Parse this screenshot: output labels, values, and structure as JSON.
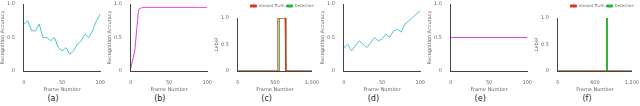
{
  "chart_data": [
    {
      "type": "line",
      "caption": "(a)",
      "x_label": "Frame Number",
      "y_label": "Recognition Accuracy",
      "x": [
        0,
        5,
        10,
        15,
        20,
        25,
        30,
        35,
        40,
        45,
        50,
        55,
        60,
        65,
        70,
        75,
        80,
        85,
        90,
        95,
        100
      ],
      "series": [
        {
          "name": "Accuracy",
          "color": "#4fc3d6",
          "values": [
            0.7,
            0.75,
            0.6,
            0.6,
            0.7,
            0.5,
            0.5,
            0.45,
            0.5,
            0.35,
            0.3,
            0.35,
            0.25,
            0.3,
            0.4,
            0.45,
            0.55,
            0.5,
            0.6,
            0.75,
            0.85
          ]
        }
      ],
      "xlim": [
        0,
        100
      ],
      "xticks": [
        0,
        50,
        100
      ],
      "ylim": [
        0,
        1
      ],
      "yticks": [
        0,
        0.5,
        1
      ]
    },
    {
      "type": "line",
      "caption": "(b)",
      "x_label": "Frame Number",
      "y_label": "Recognition Accuracy",
      "x": [
        0,
        5,
        10,
        15,
        20,
        30,
        40,
        50,
        60,
        70,
        80,
        90,
        100
      ],
      "series": [
        {
          "name": "Accuracy",
          "color": "#e040e0",
          "values": [
            0.05,
            0.3,
            0.92,
            0.95,
            0.95,
            0.95,
            0.95,
            0.95,
            0.95,
            0.95,
            0.95,
            0.95,
            0.95
          ]
        }
      ],
      "xlim": [
        0,
        100
      ],
      "xticks": [
        0,
        50,
        100
      ],
      "ylim": [
        0,
        1
      ],
      "yticks": [
        0,
        0.5,
        1
      ]
    },
    {
      "type": "line",
      "caption": "(c)",
      "x_label": "Frame Number",
      "y_label": "Label",
      "legend": "top",
      "x": [
        0,
        540,
        540,
        560,
        560,
        640,
        640,
        650,
        650,
        1000
      ],
      "series": [
        {
          "name": "Ground Truth",
          "color": "#e03020",
          "values": [
            0,
            0,
            1,
            1,
            1,
            1,
            1,
            1,
            0,
            0
          ]
        },
        {
          "name": "Detection",
          "color": "#30b030",
          "values": [
            0,
            0,
            0,
            0,
            1,
            1,
            0,
            0,
            0,
            0
          ]
        }
      ],
      "xlim": [
        0,
        1000
      ],
      "xticks": [
        0,
        500,
        1000
      ],
      "ylim": [
        0,
        1
      ],
      "yticks": [
        0,
        0.5,
        1
      ]
    },
    {
      "type": "line",
      "caption": "(d)",
      "x_label": "Frame Number",
      "y_label": "Recognition Accuracy",
      "x": [
        0,
        5,
        10,
        15,
        20,
        25,
        30,
        35,
        40,
        45,
        50,
        55,
        60,
        65,
        70,
        75,
        80,
        85,
        90,
        95,
        100
      ],
      "series": [
        {
          "name": "Accuracy",
          "color": "#4fc3d6",
          "values": [
            0.35,
            0.4,
            0.3,
            0.38,
            0.45,
            0.4,
            0.35,
            0.42,
            0.5,
            0.45,
            0.48,
            0.55,
            0.5,
            0.6,
            0.62,
            0.58,
            0.7,
            0.75,
            0.8,
            0.85,
            0.9
          ]
        }
      ],
      "xlim": [
        0,
        100
      ],
      "xticks": [
        0,
        50,
        100
      ],
      "ylim": [
        0,
        1
      ],
      "yticks": [
        0,
        0.5,
        1
      ]
    },
    {
      "type": "line",
      "caption": "(e)",
      "x_label": "Frame Number",
      "y_label": "Recognition Accuracy",
      "x": [
        0,
        100
      ],
      "series": [
        {
          "name": "Accuracy",
          "color": "#e040e0",
          "values": [
            0.5,
            0.5
          ]
        }
      ],
      "xlim": [
        0,
        100
      ],
      "xticks": [
        0,
        50,
        100
      ],
      "ylim": [
        0,
        1
      ],
      "yticks": [
        0,
        0.5,
        1
      ]
    },
    {
      "type": "line",
      "caption": "(f)",
      "x_label": "Frame Number",
      "y_label": "Label",
      "legend": "top",
      "x": [
        0,
        790,
        790,
        800,
        800,
        1200
      ],
      "series": [
        {
          "name": "Ground Truth",
          "color": "#e03020",
          "values": [
            0,
            0,
            0,
            0,
            0,
            0
          ]
        },
        {
          "name": "Detection",
          "color": "#30b030",
          "values": [
            0,
            0,
            1,
            1,
            0,
            0
          ]
        }
      ],
      "xlim": [
        0,
        1200
      ],
      "xticks": [
        0,
        600,
        1200
      ],
      "ylim": [
        0,
        1
      ],
      "yticks": [
        0,
        0.5,
        1
      ]
    }
  ]
}
